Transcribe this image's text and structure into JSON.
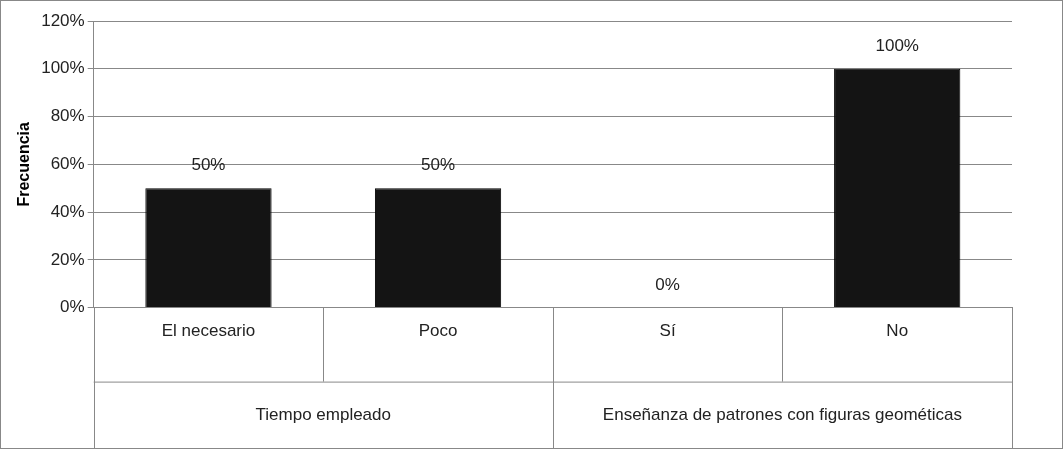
{
  "chart_data": {
    "type": "bar",
    "ylabel": "Frecuencia",
    "categories": [
      "El necesario",
      "Poco",
      "Sí",
      "No"
    ],
    "values": [
      50,
      50,
      0,
      100
    ],
    "color": "#141414",
    "ylim": [
      0,
      120
    ],
    "yticks": [
      {
        "value": 0,
        "label": "0%"
      },
      {
        "value": 20,
        "label": "20%"
      },
      {
        "value": 40,
        "label": "40%"
      },
      {
        "value": 60,
        "label": "60%"
      },
      {
        "value": 80,
        "label": "80%"
      },
      {
        "value": 100,
        "label": "100%"
      },
      {
        "value": 120,
        "label": "120%"
      }
    ],
    "value_labels": [
      "50%",
      "50%",
      "0%",
      "100%"
    ],
    "annotations": [
      "Tiempo empleado",
      "Enseñanza de patrones con figuras geométicas"
    ],
    "grid": "y",
    "legend": false
  }
}
